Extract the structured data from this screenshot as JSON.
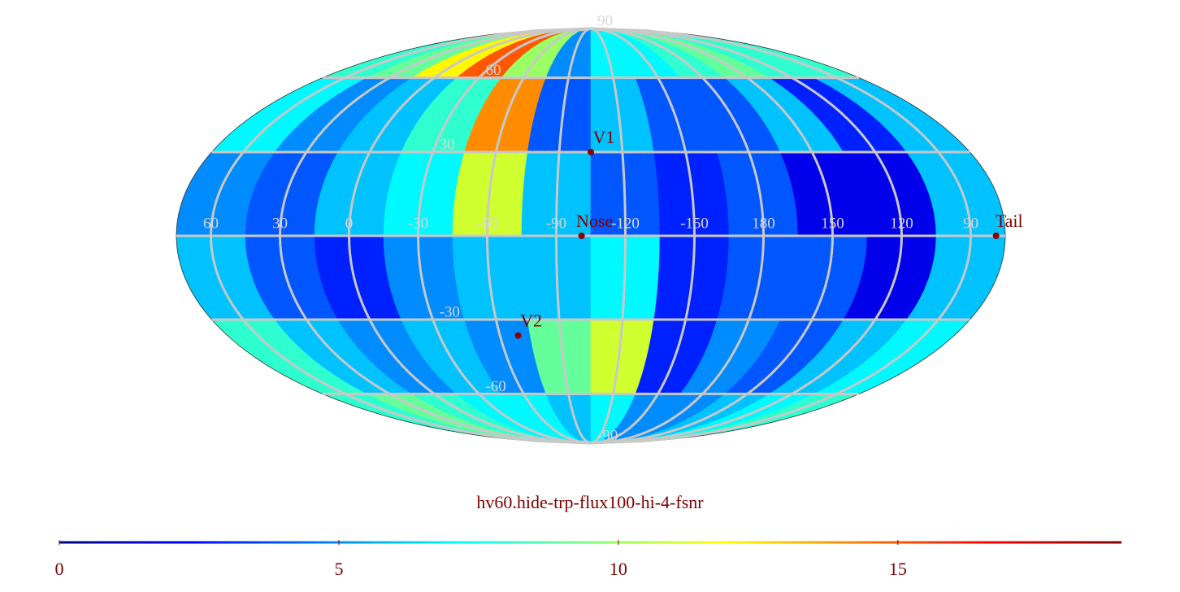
{
  "chart_data": {
    "type": "mollweide",
    "title": "hv60.hide-trp-flux100-hi-4-fsnr",
    "xlim": [
      75,
      -285
    ],
    "ylim": [
      -90,
      90
    ],
    "xticks": [
      60,
      30,
      0,
      -30,
      -60,
      -90,
      -120,
      -150,
      180,
      150,
      120,
      90
    ],
    "yticks": [
      90,
      60,
      30,
      -30,
      -60,
      -90
    ],
    "grid": true,
    "xbins": [
      75,
      45,
      15,
      -15,
      -45,
      -75,
      -105,
      -135,
      -165,
      -195,
      -225,
      -255,
      -285
    ],
    "ybins": [
      90,
      60,
      30,
      0,
      -30,
      -60,
      -90
    ],
    "values": [
      [
        8,
        9,
        12,
        15,
        10,
        5,
        7,
        7,
        8,
        9,
        8,
        8
      ],
      [
        7,
        5,
        6,
        8,
        14,
        4,
        6,
        4,
        4,
        6,
        3,
        6
      ],
      [
        5,
        4,
        6,
        7,
        11,
        6,
        4,
        3,
        4,
        2,
        2,
        6
      ],
      [
        6,
        4,
        3,
        5,
        6,
        6,
        7,
        3,
        4,
        4,
        2,
        6
      ],
      [
        8,
        6,
        5,
        6,
        5,
        9,
        11,
        3,
        5,
        4,
        6,
        7
      ],
      [
        8,
        9,
        8,
        7,
        7,
        6,
        7,
        5,
        5,
        6,
        7,
        8
      ]
    ],
    "clim": [
      0,
      19
    ],
    "cticks": [
      0,
      5,
      10,
      15
    ],
    "colormap": [
      "#00007f",
      "#0000ff",
      "#007fff",
      "#00ffff",
      "#7fff7f",
      "#ffff00",
      "#ff7f00",
      "#ff0000",
      "#7f0000"
    ],
    "points": [
      {
        "label": "V1",
        "lon": -105,
        "lat": 30
      },
      {
        "label": "Nose",
        "lon": -101,
        "lat": 0
      },
      {
        "label": "V2",
        "lon": -69,
        "lat": -36
      },
      {
        "label": "Tail",
        "lon": 79,
        "lat": 0
      }
    ]
  }
}
